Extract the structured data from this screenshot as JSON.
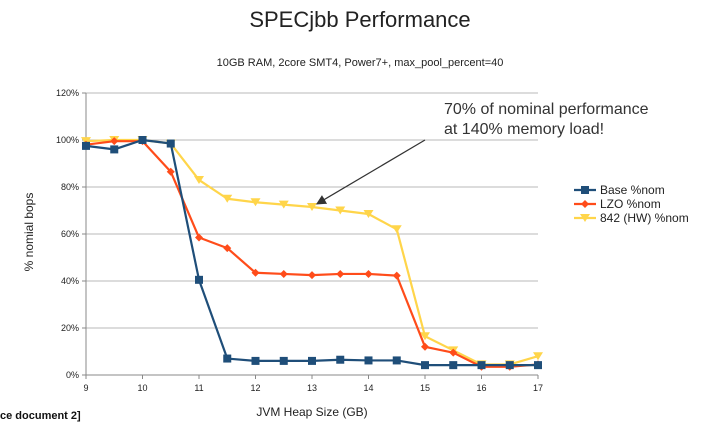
{
  "chart_data": {
    "type": "line",
    "title": "SPECjbb Performance",
    "subtitle": "10GB RAM, 2core SMT4, Power7+, max_pool_percent=40",
    "xlabel": "JVM Heap Size (GB)",
    "ylabel": "% nomial bops",
    "xlim": [
      9,
      17
    ],
    "ylim": [
      0,
      120
    ],
    "x_ticks": [
      "9",
      "10",
      "11",
      "12",
      "13",
      "14",
      "15",
      "16",
      "17"
    ],
    "y_ticks": [
      "0%",
      "20%",
      "40%",
      "60%",
      "80%",
      "100%",
      "120%"
    ],
    "grid": "horizontal",
    "legend": "right",
    "x": [
      9,
      9.5,
      10,
      10.5,
      11,
      11.5,
      12,
      12.5,
      13,
      13.5,
      14,
      14.5,
      15,
      15.5,
      16,
      16.5,
      17
    ],
    "series": [
      {
        "name": "Base %nom",
        "color": "#1f4e79",
        "marker": "square",
        "values": [
          97.5,
          96,
          100,
          98.5,
          40.5,
          7,
          6,
          6,
          6,
          6.5,
          6.2,
          6.2,
          4.2,
          4.2,
          4.2,
          4.2,
          4.2
        ]
      },
      {
        "name": "LZO %nom",
        "color": "#ff4c1a",
        "marker": "diamond",
        "values": [
          98,
          99.5,
          99.5,
          86.5,
          58.5,
          54,
          43.5,
          43,
          42.5,
          43,
          43,
          42.3,
          12,
          9.5,
          3.5,
          3.5,
          4.5
        ]
      },
      {
        "name": "842 (HW) %nom",
        "color": "#ffd54a",
        "marker": "triangle",
        "values": [
          99.5,
          100,
          100,
          98.5,
          83,
          75,
          73.5,
          72.5,
          71.5,
          70,
          68.5,
          62,
          16.5,
          10.5,
          4.5,
          4.5,
          8
        ]
      }
    ],
    "annotations": [
      {
        "lines": [
          "70% of nominal performance",
          "at 140% memory load!"
        ],
        "arrow_to": {
          "x": 13.1,
          "y": 73
        }
      }
    ]
  },
  "footer_text": "ce document 2]"
}
